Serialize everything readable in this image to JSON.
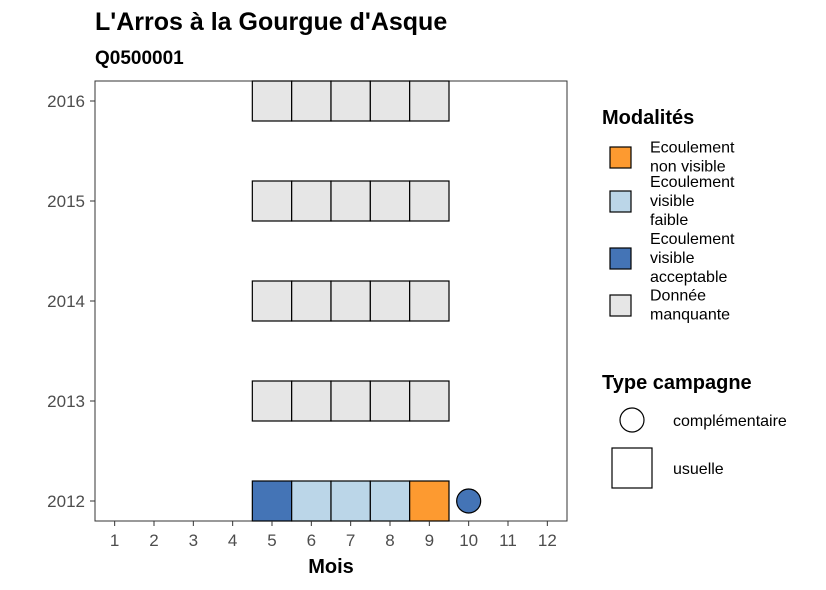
{
  "chart_data": {
    "type": "heatmap",
    "title": "L'Arros à la Gourgue d'Asque",
    "subtitle": "Q0500001",
    "xlabel": "Mois",
    "ylabel": "",
    "x_ticks": [
      1,
      2,
      3,
      4,
      5,
      6,
      7,
      8,
      9,
      10,
      11,
      12
    ],
    "y_ticks": [
      2012,
      2013,
      2014,
      2015,
      2016
    ],
    "xlim": [
      0.5,
      12.5
    ],
    "ylim": [
      2011.8,
      2016.2
    ],
    "grid": false,
    "colors": {
      "Ecoulement non visible": "#fd9a30",
      "Ecoulement visible faible": "#bbd6e8",
      "Ecoulement visible acceptable": "#4474b6",
      "Donnée manquante": "#e6e6e6"
    },
    "cells": [
      {
        "year": 2012,
        "month": 5,
        "modalite": "Ecoulement visible acceptable",
        "campagne": "usuelle"
      },
      {
        "year": 2012,
        "month": 6,
        "modalite": "Ecoulement visible faible",
        "campagne": "usuelle"
      },
      {
        "year": 2012,
        "month": 7,
        "modalite": "Ecoulement visible faible",
        "campagne": "usuelle"
      },
      {
        "year": 2012,
        "month": 8,
        "modalite": "Ecoulement visible faible",
        "campagne": "usuelle"
      },
      {
        "year": 2012,
        "month": 9,
        "modalite": "Ecoulement non visible",
        "campagne": "usuelle"
      },
      {
        "year": 2012,
        "month": 10,
        "modalite": "Ecoulement visible acceptable",
        "campagne": "complémentaire"
      },
      {
        "year": 2013,
        "month": 5,
        "modalite": "Donnée manquante",
        "campagne": "usuelle"
      },
      {
        "year": 2013,
        "month": 6,
        "modalite": "Donnée manquante",
        "campagne": "usuelle"
      },
      {
        "year": 2013,
        "month": 7,
        "modalite": "Donnée manquante",
        "campagne": "usuelle"
      },
      {
        "year": 2013,
        "month": 8,
        "modalite": "Donnée manquante",
        "campagne": "usuelle"
      },
      {
        "year": 2013,
        "month": 9,
        "modalite": "Donnée manquante",
        "campagne": "usuelle"
      },
      {
        "year": 2014,
        "month": 5,
        "modalite": "Donnée manquante",
        "campagne": "usuelle"
      },
      {
        "year": 2014,
        "month": 6,
        "modalite": "Donnée manquante",
        "campagne": "usuelle"
      },
      {
        "year": 2014,
        "month": 7,
        "modalite": "Donnée manquante",
        "campagne": "usuelle"
      },
      {
        "year": 2014,
        "month": 8,
        "modalite": "Donnée manquante",
        "campagne": "usuelle"
      },
      {
        "year": 2014,
        "month": 9,
        "modalite": "Donnée manquante",
        "campagne": "usuelle"
      },
      {
        "year": 2015,
        "month": 5,
        "modalite": "Donnée manquante",
        "campagne": "usuelle"
      },
      {
        "year": 2015,
        "month": 6,
        "modalite": "Donnée manquante",
        "campagne": "usuelle"
      },
      {
        "year": 2015,
        "month": 7,
        "modalite": "Donnée manquante",
        "campagne": "usuelle"
      },
      {
        "year": 2015,
        "month": 8,
        "modalite": "Donnée manquante",
        "campagne": "usuelle"
      },
      {
        "year": 2015,
        "month": 9,
        "modalite": "Donnée manquante",
        "campagne": "usuelle"
      },
      {
        "year": 2016,
        "month": 5,
        "modalite": "Donnée manquante",
        "campagne": "usuelle"
      },
      {
        "year": 2016,
        "month": 6,
        "modalite": "Donnée manquante",
        "campagne": "usuelle"
      },
      {
        "year": 2016,
        "month": 7,
        "modalite": "Donnée manquante",
        "campagne": "usuelle"
      },
      {
        "year": 2016,
        "month": 8,
        "modalite": "Donnée manquante",
        "campagne": "usuelle"
      },
      {
        "year": 2016,
        "month": 9,
        "modalite": "Donnée manquante",
        "campagne": "usuelle"
      }
    ],
    "legend": {
      "placement": "right",
      "modalites": {
        "title": "Modalités",
        "items": [
          {
            "key": "Ecoulement non visible",
            "lines": [
              "Ecoulement",
              "non visible"
            ]
          },
          {
            "key": "Ecoulement visible faible",
            "lines": [
              "Ecoulement",
              "visible",
              "faible"
            ]
          },
          {
            "key": "Ecoulement visible acceptable",
            "lines": [
              "Ecoulement",
              "visible",
              "acceptable"
            ]
          },
          {
            "key": "Donnée manquante",
            "lines": [
              "Donnée",
              "manquante"
            ]
          }
        ]
      },
      "campagne": {
        "title": "Type campagne",
        "items": [
          {
            "shape": "circle",
            "label": "complémentaire"
          },
          {
            "shape": "square",
            "label": "usuelle"
          }
        ]
      }
    }
  }
}
